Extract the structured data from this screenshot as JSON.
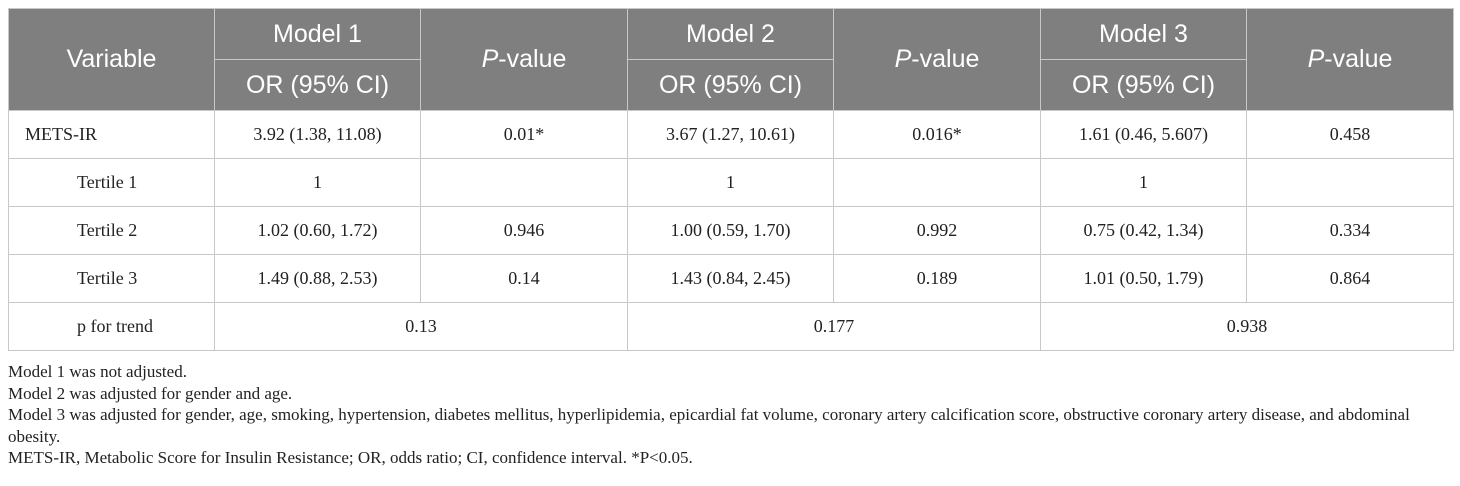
{
  "table": {
    "header": {
      "variable": "Variable",
      "models": [
        "Model 1",
        "Model 2",
        "Model 3"
      ],
      "or_label": "OR (95% CI)",
      "p_prefix": "P",
      "p_suffix": "-value"
    },
    "rows": [
      {
        "label": "METS-IR",
        "m1_or": "3.92 (1.38, 11.08)",
        "m1_p": "0.01*",
        "m2_or": "3.67 (1.27, 10.61)",
        "m2_p": "0.016*",
        "m3_or": "1.61 (0.46, 5.607)",
        "m3_p": "0.458"
      },
      {
        "label": "Tertile 1",
        "m1_or": "1",
        "m1_p": "",
        "m2_or": "1",
        "m2_p": "",
        "m3_or": "1",
        "m3_p": ""
      },
      {
        "label": "Tertile 2",
        "m1_or": "1.02 (0.60, 1.72)",
        "m1_p": "0.946",
        "m2_or": "1.00 (0.59, 1.70)",
        "m2_p": "0.992",
        "m3_or": "0.75 (0.42, 1.34)",
        "m3_p": "0.334"
      },
      {
        "label": "Tertile 3",
        "m1_or": "1.49 (0.88, 2.53)",
        "m1_p": "0.14",
        "m2_or": "1.43 (0.84, 2.45)",
        "m2_p": "0.189",
        "m3_or": "1.01 (0.50, 1.79)",
        "m3_p": "0.864"
      }
    ],
    "trend": {
      "label": "p for trend",
      "m1": "0.13",
      "m2": "0.177",
      "m3": "0.938"
    }
  },
  "notes": [
    "Model 1 was not adjusted.",
    "Model 2 was adjusted for gender and age.",
    "Model 3 was adjusted for gender, age, smoking, hypertension, diabetes mellitus, hyperlipidemia, epicardial fat volume, coronary artery calcification score, obstructive coronary artery disease, and abdominal obesity.",
    "METS-IR, Metabolic Score for Insulin Resistance; OR, odds ratio; CI, confidence interval. *P<0.05."
  ],
  "colors": {
    "header_background": "#7f7f7f",
    "header_text": "#ffffff",
    "grid_line": "#c8c8c8",
    "body_text": "#222222"
  }
}
